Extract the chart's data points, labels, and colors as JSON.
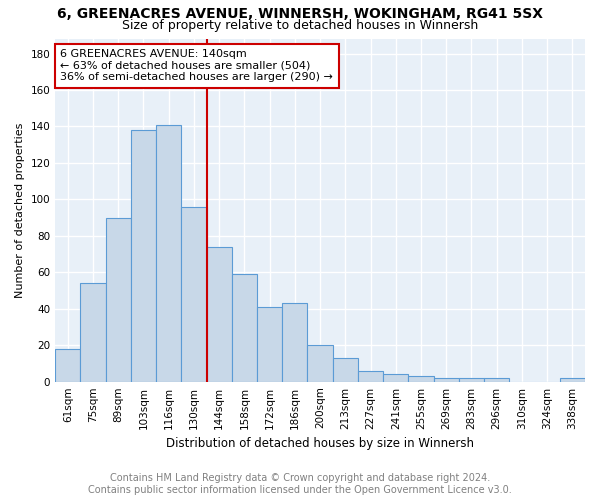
{
  "title_line1": "6, GREENACRES AVENUE, WINNERSH, WOKINGHAM, RG41 5SX",
  "title_line2": "Size of property relative to detached houses in Winnersh",
  "xlabel": "Distribution of detached houses by size in Winnersh",
  "ylabel": "Number of detached properties",
  "categories": [
    "61sqm",
    "75sqm",
    "89sqm",
    "103sqm",
    "116sqm",
    "130sqm",
    "144sqm",
    "158sqm",
    "172sqm",
    "186sqm",
    "200sqm",
    "213sqm",
    "227sqm",
    "241sqm",
    "255sqm",
    "269sqm",
    "283sqm",
    "296sqm",
    "310sqm",
    "324sqm",
    "338sqm"
  ],
  "values": [
    18,
    54,
    90,
    138,
    141,
    96,
    74,
    59,
    41,
    43,
    20,
    13,
    6,
    4,
    3,
    2,
    2,
    2,
    0,
    0,
    2
  ],
  "bar_color": "#c8d8e8",
  "bar_edge_color": "#5b9bd5",
  "grid_color": "#c8d8e8",
  "vline_x": 6.0,
  "vline_color": "#cc0000",
  "annotation_text": "6 GREENACRES AVENUE: 140sqm\n← 63% of detached houses are smaller (504)\n36% of semi-detached houses are larger (290) →",
  "annotation_box_color": "#cc0000",
  "ylim": [
    0,
    188
  ],
  "yticks": [
    0,
    20,
    40,
    60,
    80,
    100,
    120,
    140,
    160,
    180
  ],
  "footer_line1": "Contains HM Land Registry data © Crown copyright and database right 2024.",
  "footer_line2": "Contains public sector information licensed under the Open Government Licence v3.0.",
  "bg_color": "#ffffff",
  "title1_fontsize": 10,
  "title2_fontsize": 9,
  "xlabel_fontsize": 8.5,
  "ylabel_fontsize": 8,
  "tick_fontsize": 7.5,
  "annotation_fontsize": 8,
  "footer_fontsize": 7
}
